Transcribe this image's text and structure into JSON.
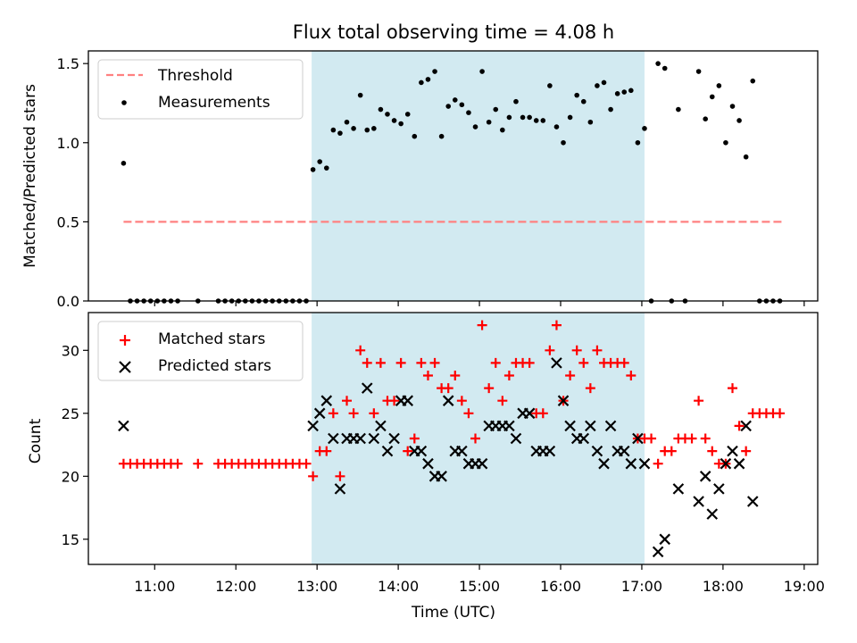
{
  "title": "Flux total observing time = 4.08 h",
  "chart_data": [
    {
      "type": "scatter",
      "ylabel": "Matched/Predicted stars",
      "xlabel": "",
      "xlim": [
        "10:11",
        "19:10"
      ],
      "ylim": [
        0,
        1.58
      ],
      "y_ticks": [
        0.0,
        0.5,
        1.0,
        1.5
      ],
      "y_tick_labels": [
        "0.0",
        "0.5",
        "1.0",
        "1.5"
      ],
      "x_ticks": [
        "11:00",
        "12:00",
        "13:00",
        "14:00",
        "15:00",
        "16:00",
        "17:00",
        "18:00",
        "19:00"
      ],
      "shaded_span": [
        "12:56",
        "17:02"
      ],
      "shade_color": "#add8e6",
      "legend_position": "upper left",
      "threshold": {
        "name": "Threshold",
        "value": 0.5,
        "x_range": [
          "10:37",
          "18:44"
        ],
        "color": "#ff8080",
        "style": "dashed"
      },
      "series": [
        {
          "name": "Measurements",
          "marker": "dot",
          "color": "#000000",
          "points": [
            [
              "10:37",
              0.87
            ],
            [
              "10:42",
              0.0
            ],
            [
              "10:47",
              0.0
            ],
            [
              "10:52",
              0.0
            ],
            [
              "10:57",
              0.0
            ],
            [
              "11:02",
              0.0
            ],
            [
              "11:07",
              0.0
            ],
            [
              "11:12",
              0.0
            ],
            [
              "11:17",
              0.0
            ],
            [
              "11:32",
              0.0
            ],
            [
              "11:47",
              0.0
            ],
            [
              "11:52",
              0.0
            ],
            [
              "11:57",
              0.0
            ],
            [
              "12:02",
              0.0
            ],
            [
              "12:07",
              0.0
            ],
            [
              "12:12",
              0.0
            ],
            [
              "12:17",
              0.0
            ],
            [
              "12:22",
              0.0
            ],
            [
              "12:27",
              0.0
            ],
            [
              "12:32",
              0.0
            ],
            [
              "12:37",
              0.0
            ],
            [
              "12:42",
              0.0
            ],
            [
              "12:47",
              0.0
            ],
            [
              "12:52",
              0.0
            ],
            [
              "12:57",
              0.83
            ],
            [
              "13:02",
              0.88
            ],
            [
              "13:07",
              0.84
            ],
            [
              "13:12",
              1.08
            ],
            [
              "13:17",
              1.06
            ],
            [
              "13:22",
              1.13
            ],
            [
              "13:27",
              1.09
            ],
            [
              "13:32",
              1.3
            ],
            [
              "13:37",
              1.08
            ],
            [
              "13:42",
              1.09
            ],
            [
              "13:47",
              1.21
            ],
            [
              "13:52",
              1.18
            ],
            [
              "13:57",
              1.14
            ],
            [
              "14:02",
              1.12
            ],
            [
              "14:07",
              1.18
            ],
            [
              "14:12",
              1.04
            ],
            [
              "14:17",
              1.38
            ],
            [
              "14:22",
              1.4
            ],
            [
              "14:27",
              1.45
            ],
            [
              "14:32",
              1.04
            ],
            [
              "14:37",
              1.23
            ],
            [
              "14:42",
              1.27
            ],
            [
              "14:47",
              1.24
            ],
            [
              "14:52",
              1.19
            ],
            [
              "14:57",
              1.1
            ],
            [
              "15:02",
              1.45
            ],
            [
              "15:07",
              1.13
            ],
            [
              "15:12",
              1.21
            ],
            [
              "15:17",
              1.08
            ],
            [
              "15:22",
              1.16
            ],
            [
              "15:27",
              1.26
            ],
            [
              "15:32",
              1.16
            ],
            [
              "15:37",
              1.16
            ],
            [
              "15:42",
              1.14
            ],
            [
              "15:47",
              1.14
            ],
            [
              "15:52",
              1.36
            ],
            [
              "15:57",
              1.1
            ],
            [
              "16:02",
              1.0
            ],
            [
              "16:07",
              1.16
            ],
            [
              "16:12",
              1.3
            ],
            [
              "16:17",
              1.26
            ],
            [
              "16:22",
              1.13
            ],
            [
              "16:27",
              1.36
            ],
            [
              "16:32",
              1.38
            ],
            [
              "16:37",
              1.21
            ],
            [
              "16:42",
              1.31
            ],
            [
              "16:47",
              1.32
            ],
            [
              "16:52",
              1.33
            ],
            [
              "16:57",
              1.0
            ],
            [
              "17:02",
              1.09
            ],
            [
              "17:07",
              0.0
            ],
            [
              "17:12",
              1.5
            ],
            [
              "17:17",
              1.47
            ],
            [
              "17:22",
              0.0
            ],
            [
              "17:27",
              1.21
            ],
            [
              "17:32",
              0.0
            ],
            [
              "17:42",
              1.45
            ],
            [
              "17:47",
              1.15
            ],
            [
              "17:52",
              1.29
            ],
            [
              "17:57",
              1.36
            ],
            [
              "18:02",
              1.0
            ],
            [
              "18:07",
              1.23
            ],
            [
              "18:12",
              1.14
            ],
            [
              "18:17",
              0.91
            ],
            [
              "18:22",
              1.39
            ],
            [
              "18:27",
              0.0
            ],
            [
              "18:32",
              0.0
            ],
            [
              "18:37",
              0.0
            ],
            [
              "18:42",
              0.0
            ]
          ]
        }
      ]
    },
    {
      "type": "scatter",
      "ylabel": "Count",
      "xlabel": "Time (UTC)",
      "xlim": [
        "10:11",
        "19:10"
      ],
      "ylim": [
        13,
        33
      ],
      "y_ticks": [
        15,
        20,
        25,
        30
      ],
      "y_tick_labels": [
        "15",
        "20",
        "25",
        "30"
      ],
      "x_ticks": [
        "11:00",
        "12:00",
        "13:00",
        "14:00",
        "15:00",
        "16:00",
        "17:00",
        "18:00",
        "19:00"
      ],
      "x_tick_labels": [
        "11:00",
        "12:00",
        "13:00",
        "14:00",
        "15:00",
        "16:00",
        "17:00",
        "18:00",
        "19:00"
      ],
      "shaded_span": [
        "12:56",
        "17:02"
      ],
      "shade_color": "#add8e6",
      "legend_position": "upper left",
      "series": [
        {
          "name": "Matched stars",
          "marker": "plus",
          "color": "#ff0000",
          "points": [
            [
              "10:37",
              21
            ],
            [
              "10:42",
              21
            ],
            [
              "10:47",
              21
            ],
            [
              "10:52",
              21
            ],
            [
              "10:57",
              21
            ],
            [
              "11:02",
              21
            ],
            [
              "11:07",
              21
            ],
            [
              "11:12",
              21
            ],
            [
              "11:17",
              21
            ],
            [
              "11:32",
              21
            ],
            [
              "11:47",
              21
            ],
            [
              "11:52",
              21
            ],
            [
              "11:57",
              21
            ],
            [
              "12:02",
              21
            ],
            [
              "12:07",
              21
            ],
            [
              "12:12",
              21
            ],
            [
              "12:17",
              21
            ],
            [
              "12:22",
              21
            ],
            [
              "12:27",
              21
            ],
            [
              "12:32",
              21
            ],
            [
              "12:37",
              21
            ],
            [
              "12:42",
              21
            ],
            [
              "12:47",
              21
            ],
            [
              "12:52",
              21
            ],
            [
              "12:57",
              20
            ],
            [
              "13:02",
              22
            ],
            [
              "13:07",
              22
            ],
            [
              "13:12",
              25
            ],
            [
              "13:17",
              20
            ],
            [
              "13:22",
              26
            ],
            [
              "13:27",
              25
            ],
            [
              "13:32",
              30
            ],
            [
              "13:37",
              29
            ],
            [
              "13:42",
              25
            ],
            [
              "13:47",
              29
            ],
            [
              "13:52",
              26
            ],
            [
              "13:57",
              26
            ],
            [
              "14:02",
              29
            ],
            [
              "14:07",
              22
            ],
            [
              "14:12",
              23
            ],
            [
              "14:17",
              29
            ],
            [
              "14:22",
              28
            ],
            [
              "14:27",
              29
            ],
            [
              "14:32",
              27
            ],
            [
              "14:37",
              27
            ],
            [
              "14:42",
              28
            ],
            [
              "14:47",
              26
            ],
            [
              "14:52",
              25
            ],
            [
              "14:57",
              23
            ],
            [
              "15:02",
              32
            ],
            [
              "15:07",
              27
            ],
            [
              "15:12",
              29
            ],
            [
              "15:17",
              26
            ],
            [
              "15:22",
              28
            ],
            [
              "15:27",
              29
            ],
            [
              "15:32",
              29
            ],
            [
              "15:37",
              29
            ],
            [
              "15:42",
              25
            ],
            [
              "15:47",
              25
            ],
            [
              "15:52",
              30
            ],
            [
              "15:57",
              32
            ],
            [
              "16:02",
              26
            ],
            [
              "16:07",
              28
            ],
            [
              "16:12",
              30
            ],
            [
              "16:17",
              29
            ],
            [
              "16:22",
              27
            ],
            [
              "16:27",
              30
            ],
            [
              "16:32",
              29
            ],
            [
              "16:37",
              29
            ],
            [
              "16:42",
              29
            ],
            [
              "16:47",
              29
            ],
            [
              "16:52",
              28
            ],
            [
              "16:57",
              23
            ],
            [
              "17:02",
              23
            ],
            [
              "17:07",
              23
            ],
            [
              "17:12",
              21
            ],
            [
              "17:17",
              22
            ],
            [
              "17:22",
              22
            ],
            [
              "17:27",
              23
            ],
            [
              "17:32",
              23
            ],
            [
              "17:37",
              23
            ],
            [
              "17:42",
              26
            ],
            [
              "17:47",
              23
            ],
            [
              "17:52",
              22
            ],
            [
              "17:57",
              21
            ],
            [
              "18:02",
              21
            ],
            [
              "18:07",
              27
            ],
            [
              "18:12",
              24
            ],
            [
              "18:17",
              22
            ],
            [
              "18:22",
              25
            ],
            [
              "18:27",
              25
            ],
            [
              "18:32",
              25
            ],
            [
              "18:37",
              25
            ],
            [
              "18:42",
              25
            ]
          ]
        },
        {
          "name": "Predicted stars",
          "marker": "x",
          "color": "#000000",
          "points": [
            [
              "10:37",
              24
            ],
            [
              "12:57",
              24
            ],
            [
              "13:02",
              25
            ],
            [
              "13:07",
              26
            ],
            [
              "13:12",
              23
            ],
            [
              "13:17",
              19
            ],
            [
              "13:22",
              23
            ],
            [
              "13:27",
              23
            ],
            [
              "13:32",
              23
            ],
            [
              "13:37",
              27
            ],
            [
              "13:42",
              23
            ],
            [
              "13:47",
              24
            ],
            [
              "13:52",
              22
            ],
            [
              "13:57",
              23
            ],
            [
              "14:02",
              26
            ],
            [
              "14:07",
              26
            ],
            [
              "14:12",
              22
            ],
            [
              "14:17",
              22
            ],
            [
              "14:22",
              21
            ],
            [
              "14:27",
              20
            ],
            [
              "14:32",
              20
            ],
            [
              "14:37",
              26
            ],
            [
              "14:42",
              22
            ],
            [
              "14:47",
              22
            ],
            [
              "14:52",
              21
            ],
            [
              "14:57",
              21
            ],
            [
              "15:02",
              21
            ],
            [
              "15:07",
              24
            ],
            [
              "15:12",
              24
            ],
            [
              "15:17",
              24
            ],
            [
              "15:22",
              24
            ],
            [
              "15:27",
              23
            ],
            [
              "15:32",
              25
            ],
            [
              "15:37",
              25
            ],
            [
              "15:42",
              22
            ],
            [
              "15:47",
              22
            ],
            [
              "15:52",
              22
            ],
            [
              "15:57",
              29
            ],
            [
              "16:02",
              26
            ],
            [
              "16:07",
              24
            ],
            [
              "16:12",
              23
            ],
            [
              "16:17",
              23
            ],
            [
              "16:22",
              24
            ],
            [
              "16:27",
              22
            ],
            [
              "16:32",
              21
            ],
            [
              "16:37",
              24
            ],
            [
              "16:42",
              22
            ],
            [
              "16:47",
              22
            ],
            [
              "16:52",
              21
            ],
            [
              "16:57",
              23
            ],
            [
              "17:02",
              21
            ],
            [
              "17:12",
              14
            ],
            [
              "17:17",
              15
            ],
            [
              "17:27",
              19
            ],
            [
              "17:42",
              18
            ],
            [
              "17:47",
              20
            ],
            [
              "17:52",
              17
            ],
            [
              "17:57",
              19
            ],
            [
              "18:02",
              21
            ],
            [
              "18:07",
              22
            ],
            [
              "18:12",
              21
            ],
            [
              "18:17",
              24
            ],
            [
              "18:22",
              18
            ]
          ]
        }
      ]
    }
  ]
}
